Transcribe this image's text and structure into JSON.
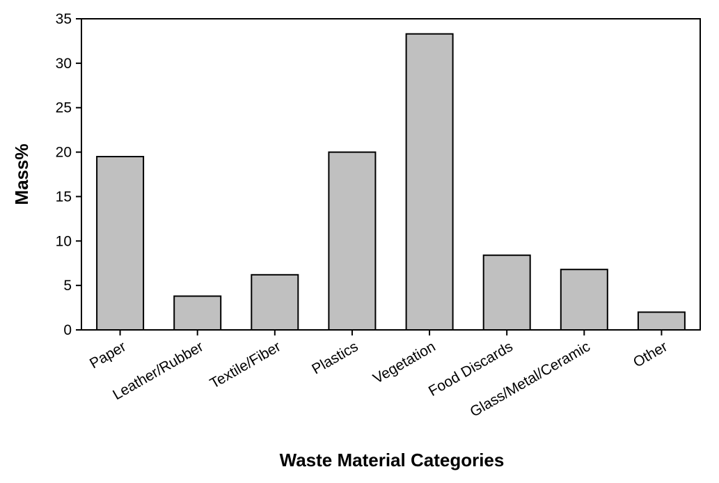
{
  "chart_data": {
    "type": "bar",
    "title": "",
    "xlabel": "Waste Material Categories",
    "ylabel": "Mass%",
    "categories": [
      "Paper",
      "Leather/Rubber",
      "Textile/Fiber",
      "Plastics",
      "Vegetation",
      "Food Discards",
      "Glass/Metal/Ceramic",
      "Other"
    ],
    "values": [
      19.5,
      3.8,
      6.2,
      20.0,
      33.3,
      8.4,
      6.8,
      2.0
    ],
    "ylim": [
      0,
      35
    ],
    "yticks": [
      0,
      5,
      10,
      15,
      20,
      25,
      30,
      35
    ],
    "grid": false,
    "bar_color": "#c0c0c0"
  }
}
